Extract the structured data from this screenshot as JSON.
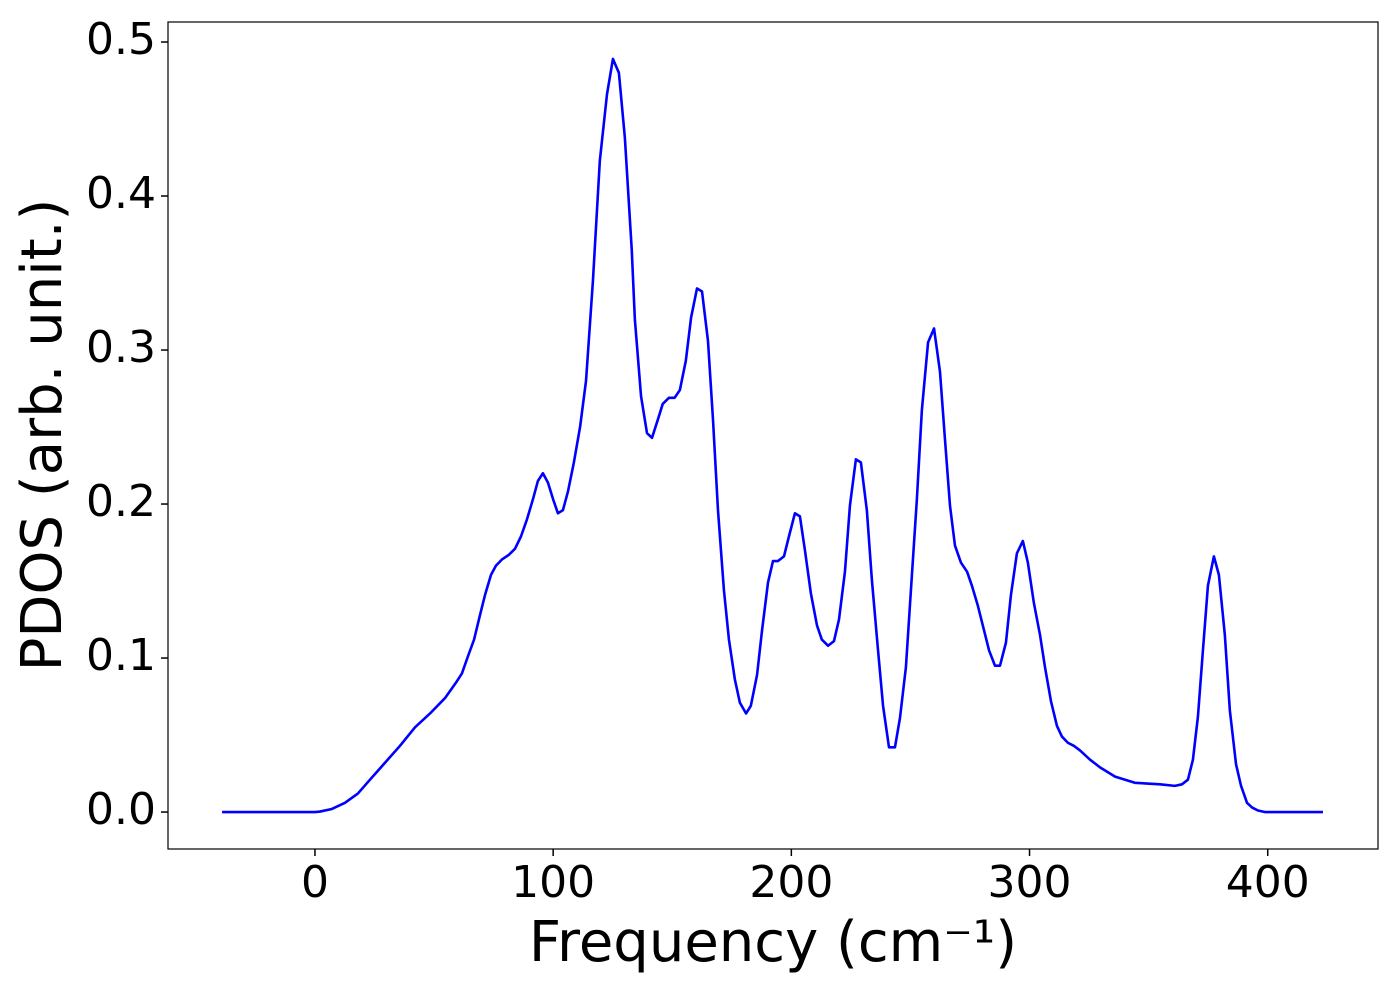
{
  "chart_data": {
    "type": "line",
    "xlabel": "Frequency (cm⁻¹)",
    "ylabel": "PDOS (arb. unit.)",
    "xlim": [
      -61.7,
      446.3
    ],
    "ylim": [
      -0.024,
      0.513
    ],
    "xticks": [
      0,
      100,
      200,
      300,
      400
    ],
    "yticks": [
      {
        "value": 0,
        "label": "0.0"
      },
      0.1,
      0.2,
      0.3,
      0.4,
      0.5
    ],
    "series": [
      {
        "color": "#0000ff",
        "x": [
          -39,
          0,
          2.1,
          7.1,
          12.6,
          18,
          23.1,
          29.4,
          35.7,
          42,
          48.3,
          54.6,
          59.2,
          61.7,
          64.2,
          66.8,
          69.3,
          71.4,
          73.9,
          76,
          78.5,
          81.4,
          84,
          86.5,
          89,
          91.5,
          93.6,
          95.7,
          97.8,
          100,
          102,
          104.1,
          106.2,
          108.7,
          111.3,
          113.8,
          116.7,
          119.6,
          122.6,
          125.1,
          127.6,
          130.1,
          133,
          134.3,
          136.9,
          139.4,
          141.5,
          144,
          146,
          148.6,
          151,
          153.2,
          155.7,
          157.9,
          160.4,
          162.5,
          165,
          167.1,
          169.2,
          171.7,
          173.8,
          176.3,
          178.4,
          181,
          183,
          185.6,
          187.7,
          190.2,
          192.3,
          194.4,
          196.9,
          199,
          201.5,
          203.6,
          205.7,
          208.2,
          210.8,
          212.8,
          215.4,
          217.9,
          220,
          222.5,
          224.6,
          227.1,
          229.2,
          231.7,
          233.8,
          236.4,
          238.5,
          241,
          243.5,
          245.6,
          248.1,
          250.2,
          252.7,
          254.8,
          257.4,
          259.9,
          262.4,
          264.5,
          266.6,
          268.7,
          271.2,
          273.8,
          275.8,
          278.3,
          280.9,
          283,
          285.5,
          287.6,
          290.1,
          292.2,
          294.7,
          297.2,
          299.3,
          301.8,
          304.4,
          306.5,
          309,
          311.5,
          313.6,
          316.1,
          318.6,
          321.2,
          325.4,
          329.6,
          335.9,
          344.2,
          354.8,
          361,
          364,
          366.5,
          368.6,
          370.7,
          372.8,
          374.9,
          377.4,
          379.5,
          382,
          384.1,
          386.7,
          388.8,
          391.3,
          393.4,
          395.9,
          398.8,
          423.2
        ],
        "values": [
          0,
          0,
          0.0003,
          0.002,
          0.006,
          0.012,
          0.021,
          0.032,
          0.043,
          0.055,
          0.064,
          0.074,
          0.084,
          0.09,
          0.101,
          0.112,
          0.128,
          0.141,
          0.154,
          0.16,
          0.164,
          0.167,
          0.171,
          0.179,
          0.19,
          0.203,
          0.215,
          0.22,
          0.214,
          0.203,
          0.194,
          0.196,
          0.208,
          0.227,
          0.25,
          0.28,
          0.345,
          0.423,
          0.466,
          0.489,
          0.48,
          0.438,
          0.365,
          0.32,
          0.27,
          0.246,
          0.243,
          0.255,
          0.265,
          0.269,
          0.269,
          0.274,
          0.293,
          0.321,
          0.34,
          0.338,
          0.306,
          0.255,
          0.196,
          0.144,
          0.112,
          0.086,
          0.071,
          0.064,
          0.069,
          0.089,
          0.118,
          0.149,
          0.163,
          0.163,
          0.166,
          0.179,
          0.194,
          0.192,
          0.17,
          0.142,
          0.121,
          0.112,
          0.108,
          0.111,
          0.125,
          0.156,
          0.199,
          0.229,
          0.227,
          0.196,
          0.151,
          0.105,
          0.069,
          0.042,
          0.042,
          0.061,
          0.094,
          0.144,
          0.203,
          0.261,
          0.305,
          0.314,
          0.286,
          0.242,
          0.199,
          0.173,
          0.162,
          0.156,
          0.147,
          0.134,
          0.118,
          0.105,
          0.095,
          0.095,
          0.11,
          0.141,
          0.168,
          0.176,
          0.162,
          0.136,
          0.115,
          0.094,
          0.072,
          0.056,
          0.049,
          0.045,
          0.043,
          0.04,
          0.034,
          0.029,
          0.023,
          0.019,
          0.018,
          0.017,
          0.018,
          0.021,
          0.034,
          0.062,
          0.105,
          0.147,
          0.166,
          0.154,
          0.115,
          0.066,
          0.031,
          0.017,
          0.006,
          0.003,
          0.001,
          0,
          0
        ]
      }
    ]
  }
}
